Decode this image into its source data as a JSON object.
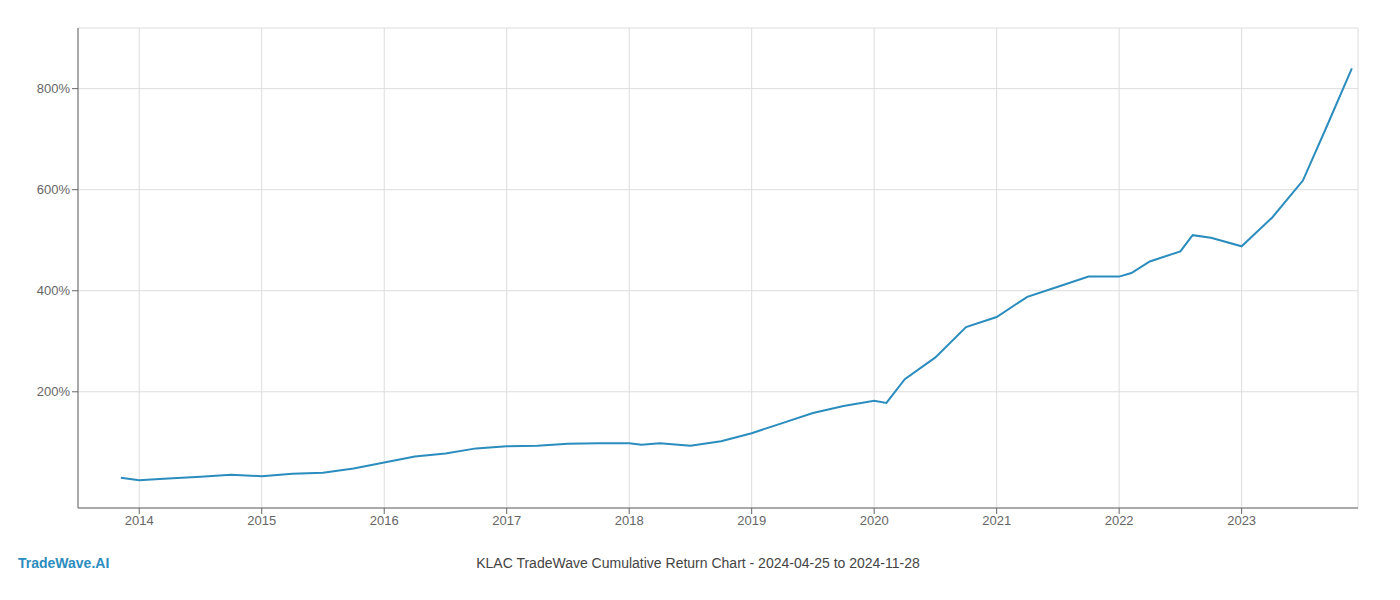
{
  "chart_data": {
    "type": "line",
    "title": "KLAC TradeWave Cumulative Return Chart - 2024-04-25 to 2024-11-28",
    "annotations": [
      "TradeWave.AI"
    ],
    "x": [
      2013.85,
      2014.0,
      2014.2,
      2014.5,
      2014.75,
      2015.0,
      2015.25,
      2015.5,
      2015.75,
      2016.0,
      2016.25,
      2016.5,
      2016.75,
      2017.0,
      2017.25,
      2017.5,
      2017.75,
      2018.0,
      2018.1,
      2018.25,
      2018.5,
      2018.75,
      2019.0,
      2019.25,
      2019.5,
      2019.75,
      2020.0,
      2020.1,
      2020.25,
      2020.5,
      2020.75,
      2021.0,
      2021.25,
      2021.5,
      2021.75,
      2022.0,
      2022.1,
      2022.25,
      2022.5,
      2022.6,
      2022.75,
      2023.0,
      2023.25,
      2023.5,
      2023.7,
      2023.9
    ],
    "values": [
      30,
      25,
      28,
      32,
      36,
      33,
      38,
      40,
      48,
      60,
      72,
      78,
      88,
      92,
      93,
      97,
      98,
      98,
      95,
      98,
      93,
      102,
      118,
      138,
      158,
      172,
      182,
      178,
      225,
      268,
      328,
      348,
      388,
      408,
      428,
      428,
      435,
      458,
      478,
      510,
      505,
      488,
      545,
      618,
      728,
      840
    ],
    "color": "#2b8cbe",
    "xlim": [
      2013.5,
      2023.95
    ],
    "xticks": [
      2014,
      2015,
      2016,
      2017,
      2018,
      2019,
      2020,
      2021,
      2022,
      2023
    ],
    "ylim": [
      -30,
      920
    ],
    "yticks": [
      {
        "value": 200,
        "label": "200%"
      },
      {
        "value": 400,
        "label": "400%"
      },
      {
        "value": 600,
        "label": "600%"
      },
      {
        "value": 800,
        "label": "800%"
      }
    ],
    "grid": true
  }
}
